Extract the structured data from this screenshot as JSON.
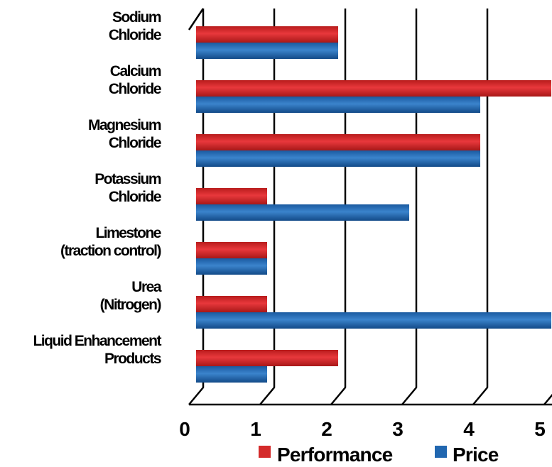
{
  "chart_data": {
    "type": "bar",
    "orientation": "horizontal",
    "categories": [
      [
        "Sodium",
        "Chloride"
      ],
      [
        "Calcium",
        "Chloride"
      ],
      [
        "Magnesium",
        "Chloride"
      ],
      [
        "Potassium",
        "Chloride"
      ],
      [
        "Limestone",
        "(traction control)"
      ],
      [
        "Urea",
        "(Nitrogen)"
      ],
      [
        "Liquid Enhancement",
        "Products"
      ]
    ],
    "series": [
      {
        "name": "Performance",
        "color": "#d42a2a",
        "values": [
          2,
          5,
          4,
          1,
          1,
          1,
          2
        ]
      },
      {
        "name": "Price",
        "color": "#2167b0",
        "values": [
          2,
          4,
          4,
          3,
          1,
          5,
          1
        ]
      }
    ],
    "xlim": [
      0,
      5
    ],
    "xticks": [
      "0",
      "1",
      "2",
      "3",
      "4",
      "5"
    ],
    "grid": true,
    "legend": "bottom",
    "title": "",
    "xlabel": "",
    "ylabel": ""
  }
}
